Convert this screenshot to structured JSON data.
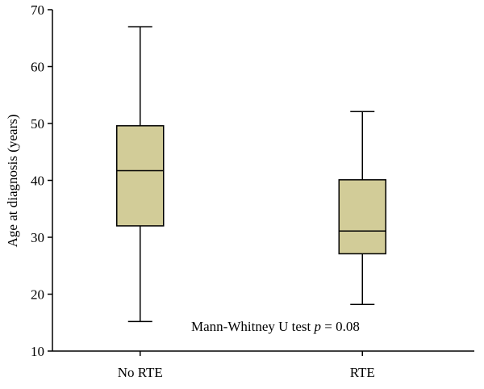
{
  "chart_data": {
    "type": "box",
    "title": "",
    "xlabel": "",
    "ylabel": "Age at diagnosis (years)",
    "ylim": [
      10,
      70
    ],
    "yticks": [
      10,
      20,
      30,
      40,
      50,
      60,
      70
    ],
    "ytick_labels": [
      "10",
      "20",
      "30",
      "40",
      "50",
      "60",
      "70"
    ],
    "categories": [
      "No RTE",
      "RTE"
    ],
    "boxes": [
      {
        "name": "No RTE",
        "min": 15.2,
        "q1": 32,
        "median": 41.7,
        "q3": 49.6,
        "max": 67
      },
      {
        "name": "RTE",
        "min": 18.2,
        "q1": 27.1,
        "median": 31.1,
        "q3": 40.1,
        "max": 52.1
      }
    ],
    "annotation": {
      "prefix": "Mann-Whitney U test ",
      "p_symbol": "p",
      "suffix": " = 0.08"
    },
    "grid": false,
    "colors": {
      "box_fill": "#d2cc98",
      "stroke": "#000000"
    }
  }
}
